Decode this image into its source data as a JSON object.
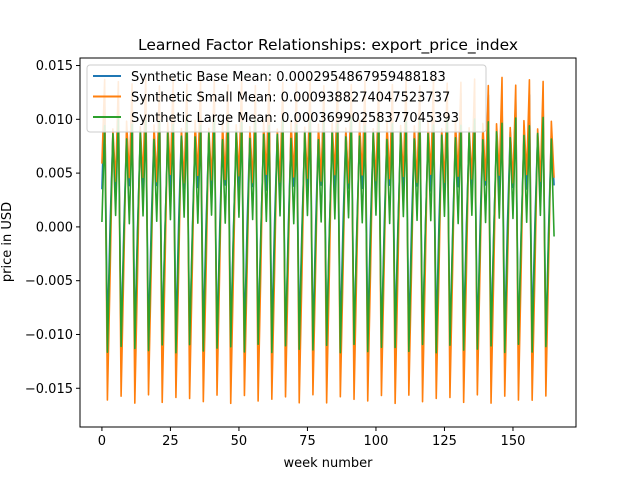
{
  "chart_data": {
    "type": "line",
    "title": "Learned Factor Relationships: export_price_index",
    "xlabel": "week number",
    "ylabel": "price in USD",
    "xlim": [
      -8,
      173
    ],
    "ylim": [
      -0.0186,
      0.0157
    ],
    "x_ticks": [
      0,
      25,
      50,
      75,
      100,
      125,
      150
    ],
    "y_ticks": [
      -0.015,
      -0.01,
      -0.005,
      0.0,
      0.005,
      0.01,
      0.015
    ],
    "x_tick_labels": [
      "0",
      "25",
      "50",
      "75",
      "100",
      "125",
      "150"
    ],
    "y_tick_labels": [
      "−0.015",
      "−0.010",
      "−0.005",
      "0.000",
      "0.005",
      "0.010",
      "0.015"
    ],
    "grid": false,
    "legend_position": "top-left",
    "periodicity_weeks": 5,
    "x": [
      0,
      165
    ],
    "series": [
      {
        "name": "Synthetic Base Mean: 0.0002954867959488183",
        "color": "#1f77b4",
        "pattern": [
          0.0035,
          0.012,
          -0.0105,
          0.0,
          0.0085
        ],
        "values_note": "periodic pattern repeating every 5 weeks"
      },
      {
        "name": "Synthetic Small Mean: 0.0009388274047523737",
        "color": "#ff7f0e",
        "pattern": [
          0.0045,
          0.0135,
          -0.016,
          -0.004,
          0.0095
        ],
        "start": 0.0055
      },
      {
        "name": "Synthetic Large Mean: 0.0003699025837704539​3",
        "color": "#2ca02c",
        "pattern": [
          0.0007,
          0.0098,
          -0.0113,
          -0.001,
          0.0085
        ],
        "end": -0.0005
      }
    ]
  }
}
